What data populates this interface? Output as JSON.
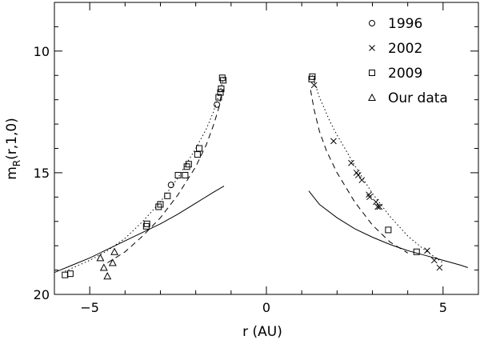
{
  "chart_data": {
    "type": "scatter",
    "xlabel": "r (AU)",
    "ylabel_main": "m",
    "ylabel_sub": "R",
    "ylabel_args": "(r,1,0)",
    "xlim": [
      -6,
      6
    ],
    "ylim": [
      20,
      8
    ],
    "y_inverted": true,
    "x_ticks": [
      -5,
      0,
      5
    ],
    "y_ticks": [
      10,
      15,
      20
    ],
    "legend_position": "top-right",
    "series": [
      {
        "name": "1996",
        "marker": "circle",
        "points": [
          [
            -2.7,
            15.5
          ],
          [
            -1.4,
            12.2
          ]
        ]
      },
      {
        "name": "2002",
        "marker": "x",
        "points": [
          [
            1.35,
            11.4
          ],
          [
            1.9,
            13.7
          ],
          [
            2.4,
            14.6
          ],
          [
            2.55,
            15.0
          ],
          [
            2.6,
            15.1
          ],
          [
            2.7,
            15.3
          ],
          [
            2.9,
            15.9
          ],
          [
            2.92,
            16.0
          ],
          [
            3.1,
            16.2
          ],
          [
            3.15,
            16.4
          ],
          [
            3.2,
            16.4
          ],
          [
            4.55,
            18.2
          ],
          [
            4.75,
            18.6
          ],
          [
            4.9,
            18.9
          ]
        ]
      },
      {
        "name": "2009",
        "marker": "square",
        "points": [
          [
            -5.7,
            19.2
          ],
          [
            -5.55,
            19.15
          ],
          [
            -3.4,
            17.2
          ],
          [
            -3.38,
            17.1
          ],
          [
            -3.05,
            16.4
          ],
          [
            -3.0,
            16.3
          ],
          [
            -2.8,
            15.95
          ],
          [
            -2.5,
            15.1
          ],
          [
            -2.3,
            15.1
          ],
          [
            -2.25,
            14.75
          ],
          [
            -2.2,
            14.65
          ],
          [
            -1.95,
            14.25
          ],
          [
            -1.9,
            14.0
          ],
          [
            -1.35,
            11.9
          ],
          [
            -1.3,
            11.7
          ],
          [
            -1.28,
            11.55
          ],
          [
            -1.25,
            11.1
          ],
          [
            -1.22,
            11.2
          ],
          [
            1.3,
            11.05
          ],
          [
            1.28,
            11.15
          ],
          [
            3.45,
            17.35
          ],
          [
            4.25,
            18.25
          ]
        ]
      },
      {
        "name": "Our data",
        "marker": "triangle",
        "points": [
          [
            -4.7,
            18.5
          ],
          [
            -4.6,
            18.9
          ],
          [
            -4.5,
            19.25
          ],
          [
            -4.35,
            18.7
          ],
          [
            -4.3,
            18.25
          ]
        ]
      }
    ],
    "curves": [
      {
        "style": "dotted",
        "left": [
          [
            -5.7,
            19.05
          ],
          [
            -5.0,
            18.6
          ],
          [
            -4.5,
            18.2
          ],
          [
            -4.0,
            17.7
          ],
          [
            -3.5,
            17.0
          ],
          [
            -3.0,
            16.2
          ],
          [
            -2.5,
            15.2
          ],
          [
            -2.0,
            14.0
          ],
          [
            -1.7,
            13.2
          ],
          [
            -1.5,
            12.5
          ],
          [
            -1.3,
            11.6
          ],
          [
            -1.2,
            11.0
          ]
        ],
        "right": [
          [
            1.3,
            11.0
          ],
          [
            1.5,
            11.9
          ],
          [
            1.8,
            12.9
          ],
          [
            2.0,
            13.45
          ],
          [
            2.5,
            14.7
          ],
          [
            3.0,
            15.85
          ],
          [
            3.5,
            16.8
          ],
          [
            4.0,
            17.6
          ],
          [
            4.5,
            18.2
          ],
          [
            5.0,
            18.7
          ]
        ]
      },
      {
        "style": "dashed",
        "left": [
          [
            -4.5,
            18.7
          ],
          [
            -4.0,
            18.25
          ],
          [
            -3.5,
            17.6
          ],
          [
            -3.0,
            16.85
          ],
          [
            -2.5,
            15.9
          ],
          [
            -2.0,
            14.75
          ],
          [
            -1.7,
            13.85
          ],
          [
            -1.5,
            13.05
          ],
          [
            -1.35,
            12.35
          ],
          [
            -1.25,
            11.6
          ]
        ],
        "right": [
          [
            1.25,
            11.6
          ],
          [
            1.35,
            12.4
          ],
          [
            1.5,
            13.3
          ],
          [
            1.7,
            14.1
          ],
          [
            2.0,
            15.0
          ],
          [
            2.5,
            16.2
          ],
          [
            3.0,
            17.15
          ],
          [
            3.5,
            17.85
          ],
          [
            4.0,
            18.3
          ]
        ]
      },
      {
        "style": "solid",
        "left": [
          [
            -6.0,
            19.1
          ],
          [
            -5.5,
            18.8
          ],
          [
            -5.0,
            18.5
          ],
          [
            -4.5,
            18.15
          ],
          [
            -4.0,
            17.8
          ],
          [
            -3.5,
            17.45
          ],
          [
            -3.0,
            17.1
          ],
          [
            -2.5,
            16.7
          ],
          [
            -2.0,
            16.25
          ],
          [
            -1.5,
            15.8
          ],
          [
            -1.2,
            15.55
          ]
        ],
        "right": [
          [
            1.2,
            15.75
          ],
          [
            1.5,
            16.3
          ],
          [
            2.0,
            16.85
          ],
          [
            2.5,
            17.3
          ],
          [
            3.0,
            17.65
          ],
          [
            3.5,
            17.95
          ],
          [
            4.0,
            18.2
          ],
          [
            4.5,
            18.4
          ],
          [
            5.0,
            18.6
          ],
          [
            5.5,
            18.8
          ],
          [
            5.7,
            18.9
          ]
        ]
      }
    ]
  }
}
